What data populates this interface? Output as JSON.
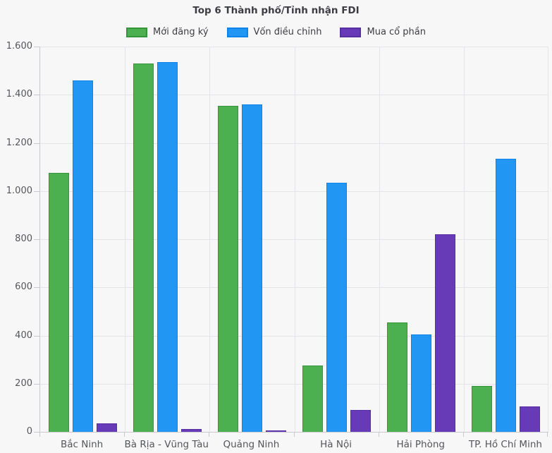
{
  "title": "Top 6 Thành phố/Tỉnh nhận FDI",
  "colors": {
    "background": "#f7f7f8",
    "gridline": "#e4e4e8",
    "axis_line": "#c9c9cf",
    "title_text": "#3c3c43",
    "tick_text": "#55565a",
    "green_fill": "#4caf50",
    "green_border": "#36953b",
    "blue_fill": "#2196f3",
    "blue_border": "#0d84ea",
    "purple_fill": "#673ab7",
    "purple_border": "#562fa0"
  },
  "chart_data": {
    "type": "bar",
    "title": "Top 6 Thành phố/Tỉnh nhận FDI",
    "xlabel": "",
    "ylabel": "",
    "ylim": [
      0,
      1600
    ],
    "grid": true,
    "legend_position": "top",
    "categories": [
      "Bắc Ninh",
      "Bà Rịa - Vũng Tàu",
      "Quảng Ninh",
      "Hà Nội",
      "Hải Phòng",
      "TP. Hồ Chí Minh"
    ],
    "y_ticks": [
      {
        "value": 0,
        "label": "0"
      },
      {
        "value": 200,
        "label": "200"
      },
      {
        "value": 400,
        "label": "400"
      },
      {
        "value": 600,
        "label": "600"
      },
      {
        "value": 800,
        "label": "800"
      },
      {
        "value": 1000,
        "label": "1.000"
      },
      {
        "value": 1200,
        "label": "1.200"
      },
      {
        "value": 1400,
        "label": "1.400"
      },
      {
        "value": 1600,
        "label": "1.600"
      }
    ],
    "series": [
      {
        "name": "Mới đăng ký",
        "fill": "#4caf50",
        "border": "#36953b",
        "values": [
          1075,
          1530,
          1355,
          275,
          455,
          190
        ]
      },
      {
        "name": "Vốn điều chỉnh",
        "fill": "#2196f3",
        "border": "#0d84ea",
        "values": [
          1460,
          1535,
          1360,
          1035,
          405,
          1135
        ]
      },
      {
        "name": "Mua cổ phần",
        "fill": "#673ab7",
        "border": "#562fa0",
        "values": [
          35,
          12,
          5,
          90,
          820,
          105
        ]
      }
    ]
  }
}
